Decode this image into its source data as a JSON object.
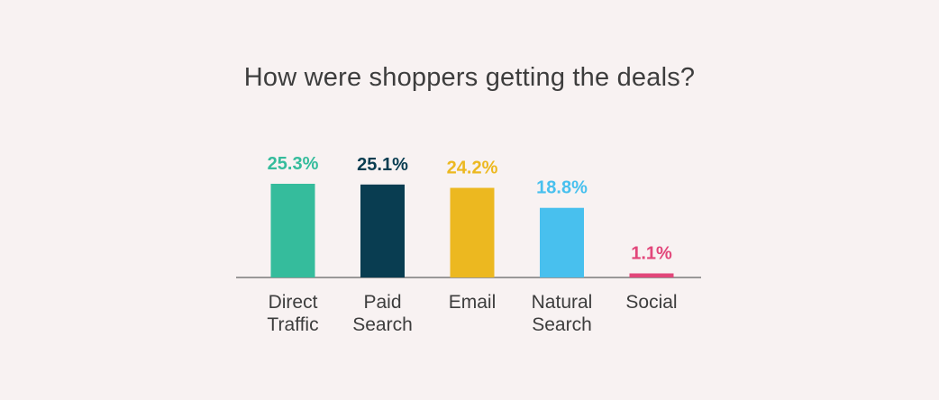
{
  "chart_data": {
    "type": "bar",
    "title": "How were shoppers getting the deals?",
    "categories": [
      [
        "Direct",
        "Traffic"
      ],
      [
        "Paid",
        "Search"
      ],
      [
        "Email"
      ],
      [
        "Natural",
        "Search"
      ],
      [
        "Social"
      ]
    ],
    "values": [
      25.3,
      25.1,
      24.2,
      18.8,
      1.1
    ],
    "value_labels": [
      "25.3%",
      "25.1%",
      "24.2%",
      "18.8%",
      "1.1%"
    ],
    "colors": [
      "#35bc9c",
      "#093d51",
      "#ecb820",
      "#48c0ee",
      "#e2467a"
    ],
    "unit": "%",
    "axis_color": "#7a7a7a",
    "category_label_color": "#3d3d3d"
  }
}
